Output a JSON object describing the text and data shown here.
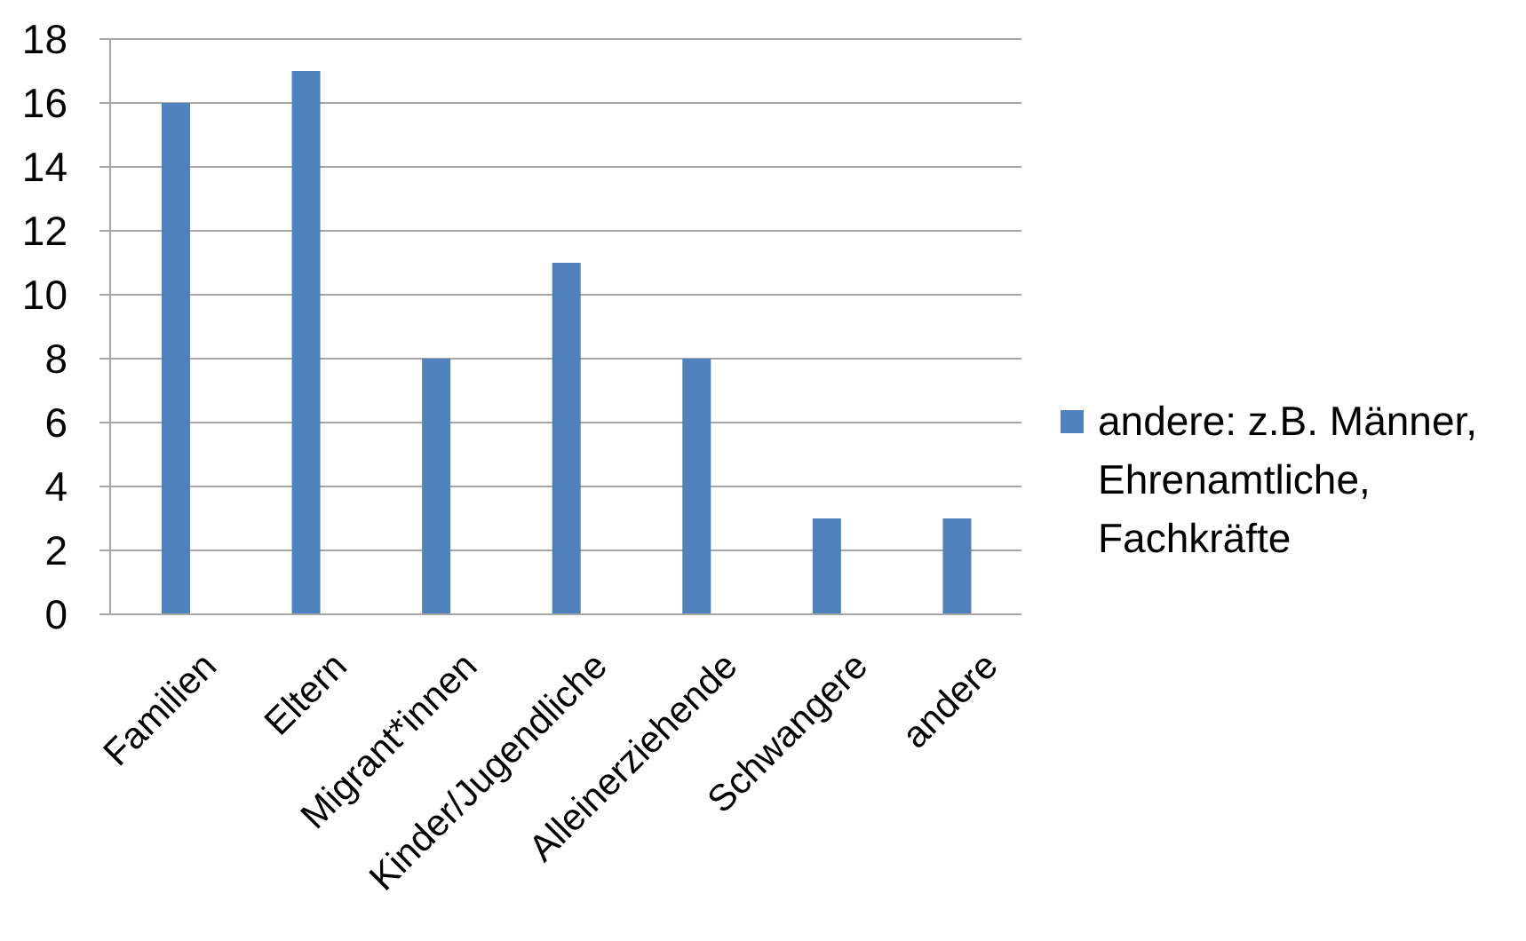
{
  "chart_data": {
    "type": "bar",
    "categories": [
      "Familien",
      "Eltern",
      "Migrant*innen",
      "Kinder/Jugendliche",
      "Alleinerziehende",
      "Schwangere",
      "andere"
    ],
    "series": [
      {
        "name": "andere: z.B. Männer, Ehrenamtliche, Fachkräfte",
        "color": "#4f81bd",
        "values": [
          16,
          17,
          8,
          11,
          8,
          3,
          3
        ]
      }
    ],
    "ylim": [
      0,
      18
    ],
    "yticks": [
      0,
      2,
      4,
      6,
      8,
      10,
      12,
      14,
      16,
      18
    ],
    "grid": "y",
    "legend": "right"
  }
}
